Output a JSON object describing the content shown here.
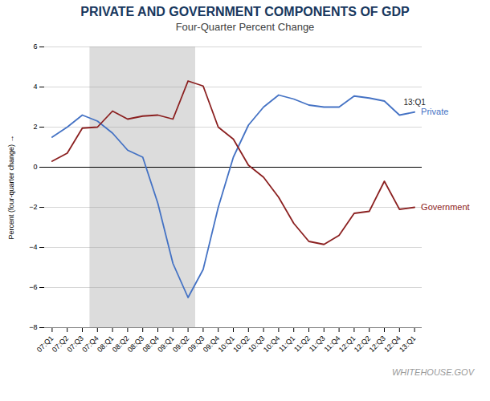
{
  "chart_data": {
    "type": "line",
    "title": "PRIVATE AND GOVERNMENT COMPONENTS OF GDP",
    "title_color": "#17375E",
    "subtitle": "Four-Quarter Percent Change",
    "ylabel": "Percent (four-quarter change)",
    "caption": "WHITEHOUSE.GOV",
    "categories": [
      "07:Q1",
      "07:Q2",
      "07:Q3",
      "07:Q4",
      "08:Q1",
      "08:Q2",
      "08:Q3",
      "08:Q4",
      "09:Q1",
      "09:Q2",
      "09:Q3",
      "09:Q4",
      "10:Q1",
      "10:Q2",
      "10:Q3",
      "10:Q4",
      "11:Q1",
      "11:Q2",
      "11:Q3",
      "11:Q4",
      "12:Q1",
      "12:Q2",
      "12:Q3",
      "12:Q4",
      "13:Q1"
    ],
    "series": [
      {
        "name": "Private",
        "color": "#4472C4",
        "values": [
          1.5,
          2.0,
          2.6,
          2.3,
          1.7,
          0.85,
          0.5,
          -1.8,
          -4.8,
          -6.5,
          -5.1,
          -2.0,
          0.5,
          2.1,
          3.0,
          3.6,
          3.4,
          3.1,
          3.0,
          3.0,
          3.55,
          3.45,
          3.3,
          2.6,
          2.75
        ]
      },
      {
        "name": "Government",
        "color": "#8B2020",
        "values": [
          0.3,
          0.7,
          1.95,
          2.0,
          2.8,
          2.4,
          2.55,
          2.6,
          2.4,
          4.3,
          4.05,
          2.0,
          1.4,
          0.1,
          -0.5,
          -1.5,
          -2.8,
          -3.7,
          -3.85,
          -3.4,
          -2.3,
          -2.2,
          -0.7,
          -2.1,
          -2.0
        ]
      }
    ],
    "recession": {
      "start": "07:Q4",
      "end": "09:Q2",
      "color": "#DCDCDC"
    },
    "annotations": [
      {
        "text": "13:Q1",
        "category": "13:Q1",
        "series": "Private"
      }
    ],
    "ylim": [
      -8,
      6
    ],
    "yticks": [
      -8,
      -6,
      -4,
      -2,
      0,
      2,
      4,
      6
    ],
    "grid": true
  }
}
